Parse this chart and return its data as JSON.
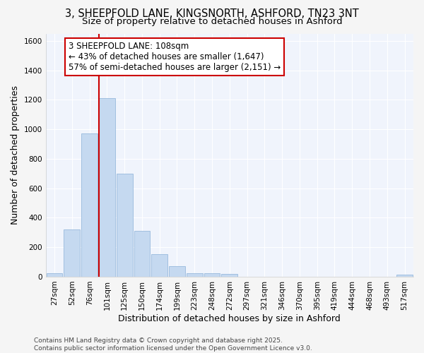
{
  "title_line1": "3, SHEEPFOLD LANE, KINGSNORTH, ASHFORD, TN23 3NT",
  "title_line2": "Size of property relative to detached houses in Ashford",
  "xlabel": "Distribution of detached houses by size in Ashford",
  "ylabel": "Number of detached properties",
  "categories": [
    "27sqm",
    "52sqm",
    "76sqm",
    "101sqm",
    "125sqm",
    "150sqm",
    "174sqm",
    "199sqm",
    "223sqm",
    "248sqm",
    "272sqm",
    "297sqm",
    "321sqm",
    "346sqm",
    "370sqm",
    "395sqm",
    "419sqm",
    "444sqm",
    "468sqm",
    "493sqm",
    "517sqm"
  ],
  "values": [
    25,
    320,
    970,
    1210,
    700,
    310,
    155,
    70,
    25,
    25,
    20,
    0,
    0,
    0,
    0,
    0,
    0,
    0,
    0,
    0,
    15
  ],
  "bar_color_normal": "#c5d9f0",
  "bar_edge_color": "#8ab0d8",
  "vline_x": 3.5,
  "vline_color": "#cc0000",
  "annotation_text": "3 SHEEPFOLD LANE: 108sqm\n← 43% of detached houses are smaller (1,647)\n57% of semi-detached houses are larger (2,151) →",
  "annotation_box_facecolor": "#ffffff",
  "annotation_box_edgecolor": "#cc0000",
  "ylim": [
    0,
    1650
  ],
  "yticks": [
    0,
    200,
    400,
    600,
    800,
    1000,
    1200,
    1400,
    1600
  ],
  "background_color": "#f5f5f5",
  "plot_background": "#f0f4fc",
  "grid_color": "#ffffff",
  "footnote": "Contains HM Land Registry data © Crown copyright and database right 2025.\nContains public sector information licensed under the Open Government Licence v3.0.",
  "title_fontsize": 10.5,
  "subtitle_fontsize": 9.5,
  "axis_label_fontsize": 9,
  "tick_fontsize": 7.5,
  "annotation_fontsize": 8.5
}
